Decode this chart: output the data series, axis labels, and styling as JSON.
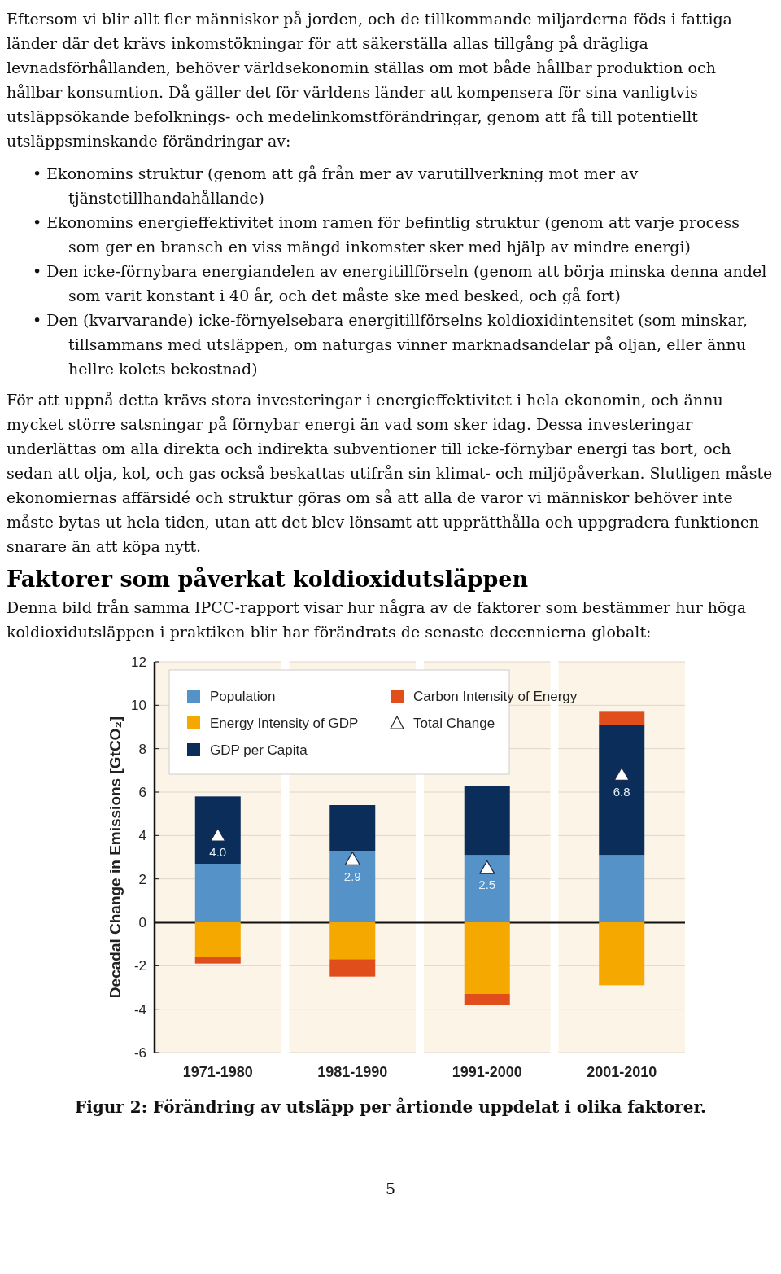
{
  "chart_data": {
    "type": "bar",
    "stacked": true,
    "title": "Faktorer som påverkat koldioxidutsläppen",
    "subtitle": "Denna bild från samma IPCC-rapport visar hur några av de faktorer som bestämmer hur höga koldioxidutsläppen i praktiken blir har förändrats de senaste decennierna globalt:",
    "annotations": [
      "Eftersom vi blir allt fler människor på jorden, och de tillkommande miljarderna föds i fattiga länder där det krävs inkomstökningar för att säkerställa allas tillgång på drägliga levnadsförhållanden, behöver världsekonomin ställas om mot både hållbar produktion och hållbar konsumtion. Då gäller det för världens länder att kompensera för sina vanligtvis utsläppsökande befolknings- och medelinkomstförändringar, genom att få till potentiellt utsläppsminskande förändringar av:",
      "• Ekonomins struktur (genom att gå från mer av varutillverkning mot mer av tjänstetillhandahållande)",
      "• Ekonomins energieffektivitet inom ramen för befintlig struktur (genom att varje process som ger en bransch en viss mängd inkomster sker med hjälp av mindre energi)",
      "• Den icke-förnybara energiandelen av energitillförseln (genom att börja minska denna andel som varit konstant i 40 år, och det måste ske med besked, och gå fort)",
      "• Den (kvarvarande) icke-förnyelsebara energitillförselns koldioxidintensitet (som minskar, tillsammans med utsläppen, om naturgas vinner marknadsandelar på oljan, eller ännu hellre kolets bekostnad)",
      "För att uppnå detta krävs stora investeringar i energieffektivitet i hela ekonomin, och ännu mycket större satsningar på förnybar energi än vad som sker idag. Dessa investeringar underlättas om alla direkta och indirekta subventioner till icke-förnybar energi tas bort, och sedan att olja, kol, och gas också beskattas utifrån sin klimat- och miljöpåverkan. Slutligen måste ekonomiernas affärsidé och struktur göras om så att alla de varor vi människor behöver inte måste bytas ut hela tiden, utan att det blev lönsamt att upprätthålla och uppgradera funktionen snarare än att köpa nytt.",
      "Figur 2: Förändring av utsläpp per årtionde uppdelat i olika faktorer.",
      "5"
    ],
    "ylabel": "Decadal Change in Emissions [GtCO₂]",
    "categories": [
      "1971-1980",
      "1981-1990",
      "1991-2000",
      "2001-2010"
    ],
    "series": [
      {
        "name": "Population",
        "color": "#5592c8",
        "values": [
          2.7,
          3.3,
          3.1,
          3.1
        ]
      },
      {
        "name": "Energy Intensity of GDP",
        "color": "#f4a800",
        "values": [
          -1.6,
          -1.7,
          -3.3,
          -2.9
        ]
      },
      {
        "name": "GDP per Capita",
        "color": "#0b2d5a",
        "values": [
          3.1,
          2.1,
          3.2,
          6.0
        ]
      },
      {
        "name": "Carbon Intensity of Energy",
        "color": "#e04e1b",
        "values": [
          -0.3,
          -0.8,
          -0.5,
          0.6
        ]
      },
      {
        "name": "Total Change",
        "type": "scatter",
        "marker": "triangle",
        "color": "#ffffff",
        "x": [
          "1971-1980",
          "1981-1990",
          "1991-2000",
          "2001-2010"
        ],
        "values": [
          4.0,
          2.9,
          2.5,
          6.8
        ],
        "value_labels": [
          "4.0",
          "2.9",
          "2.5",
          "6.8"
        ]
      }
    ],
    "ylim": [
      -6,
      12
    ],
    "yticks": [
      -6,
      -4,
      -2,
      0,
      2,
      4,
      6,
      8,
      10,
      12
    ],
    "grid": "y",
    "legend": "top"
  }
}
